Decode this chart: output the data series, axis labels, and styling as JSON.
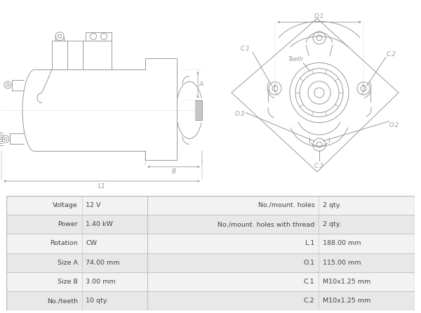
{
  "table_data": [
    [
      "Voltage",
      "12 V",
      "No./mount. holes",
      "2 qty."
    ],
    [
      "Power",
      "1.40 kW",
      "No./mount. holes with thread",
      "2 qty."
    ],
    [
      "Rotation",
      "CW",
      "L.1",
      "188.00 mm"
    ],
    [
      "Size A",
      "74.00 mm",
      "O.1",
      "115.00 mm"
    ],
    [
      "Size B",
      "3.00 mm",
      "C.1",
      "M10x1.25 mm"
    ],
    [
      "No./teeth",
      "10 qty.",
      "C.2",
      "M10x1.25 mm"
    ]
  ],
  "table_bg_alt1": "#f2f2f2",
  "table_bg_alt2": "#e8e8e8",
  "border_color": "#bbbbbb",
  "text_color": "#444444",
  "diagram_color": "#999999",
  "bg_color": "#ffffff",
  "lw": 0.7
}
